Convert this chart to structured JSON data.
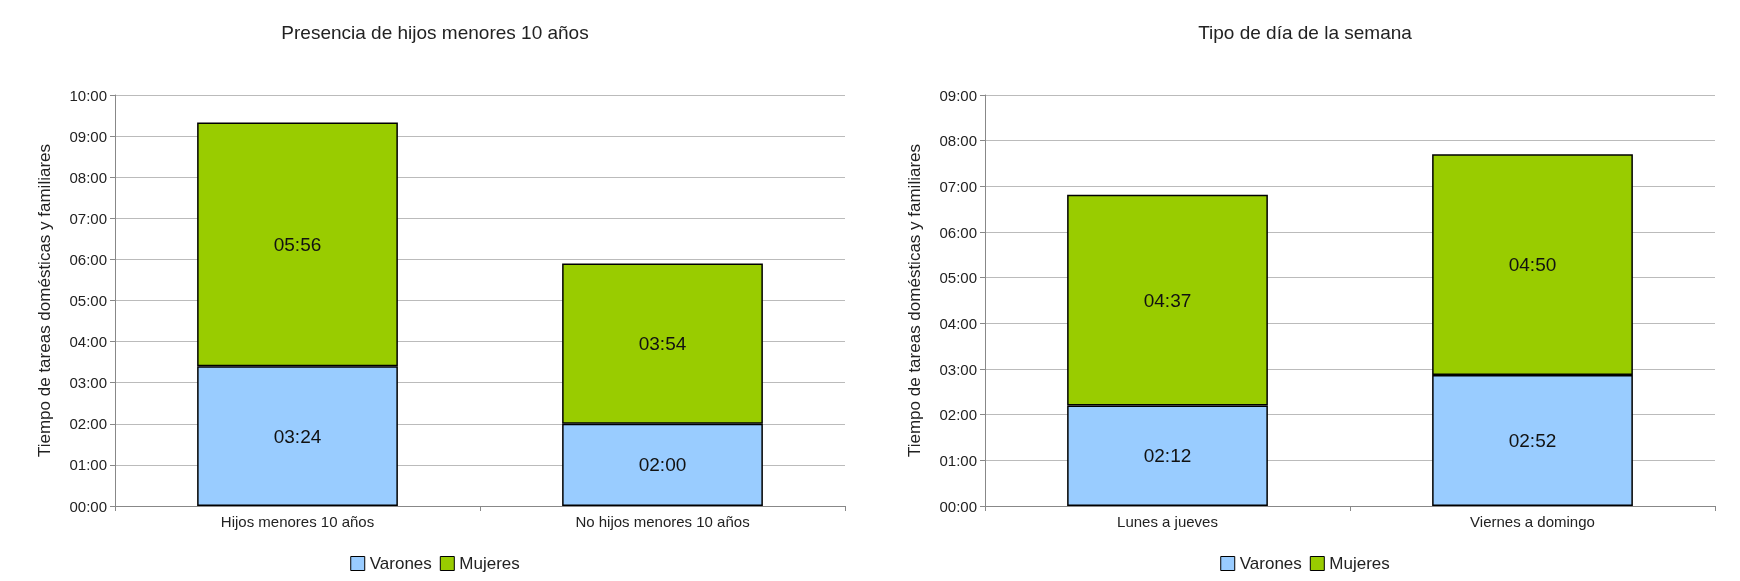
{
  "chart_data": [
    {
      "type": "bar",
      "title": "Presencia de hijos menores 10 años",
      "ylabel": "Tiempo de tareas domésticas y familiares",
      "categories": [
        "Hijos menores 10 años",
        "No hijos menores 10 años"
      ],
      "stacked": true,
      "series": [
        {
          "name": "Varones",
          "color": "#99ccff",
          "values": [
            3.4,
            2.0
          ],
          "value_labels": [
            "03:24",
            "02:00"
          ]
        },
        {
          "name": "Mujeres",
          "color": "#99cc00",
          "values": [
            5.933,
            3.9
          ],
          "value_labels": [
            "05:56",
            "03:54"
          ]
        }
      ],
      "ylim": [
        0,
        10
      ],
      "yticks": [
        {
          "value": 0,
          "label": "00:00"
        },
        {
          "value": 1,
          "label": "01:00"
        },
        {
          "value": 2,
          "label": "02:00"
        },
        {
          "value": 3,
          "label": "03:00"
        },
        {
          "value": 4,
          "label": "04:00"
        },
        {
          "value": 5,
          "label": "05:00"
        },
        {
          "value": 6,
          "label": "06:00"
        },
        {
          "value": 7,
          "label": "07:00"
        },
        {
          "value": 8,
          "label": "08:00"
        },
        {
          "value": 9,
          "label": "09:00"
        },
        {
          "value": 10,
          "label": "10:00"
        }
      ],
      "grid": "y",
      "legend": "bottom"
    },
    {
      "type": "bar",
      "title": "Tipo de día de la semana",
      "ylabel": "Tiempo de tareas domésticas y familiares",
      "categories": [
        "Lunes a jueves",
        "Viernes a domingo"
      ],
      "stacked": true,
      "series": [
        {
          "name": "Varones",
          "color": "#99ccff",
          "values": [
            2.2,
            2.867
          ],
          "value_labels": [
            "02:12",
            "02:52"
          ]
        },
        {
          "name": "Mujeres",
          "color": "#99cc00",
          "values": [
            4.617,
            4.833
          ],
          "value_labels": [
            "04:37",
            "04:50"
          ]
        }
      ],
      "ylim": [
        0,
        9
      ],
      "yticks": [
        {
          "value": 0,
          "label": "00:00"
        },
        {
          "value": 1,
          "label": "01:00"
        },
        {
          "value": 2,
          "label": "02:00"
        },
        {
          "value": 3,
          "label": "03:00"
        },
        {
          "value": 4,
          "label": "04:00"
        },
        {
          "value": 5,
          "label": "05:00"
        },
        {
          "value": 6,
          "label": "06:00"
        },
        {
          "value": 7,
          "label": "07:00"
        },
        {
          "value": 8,
          "label": "08:00"
        },
        {
          "value": 9,
          "label": "09:00"
        }
      ],
      "grid": "y",
      "legend": "bottom"
    }
  ]
}
